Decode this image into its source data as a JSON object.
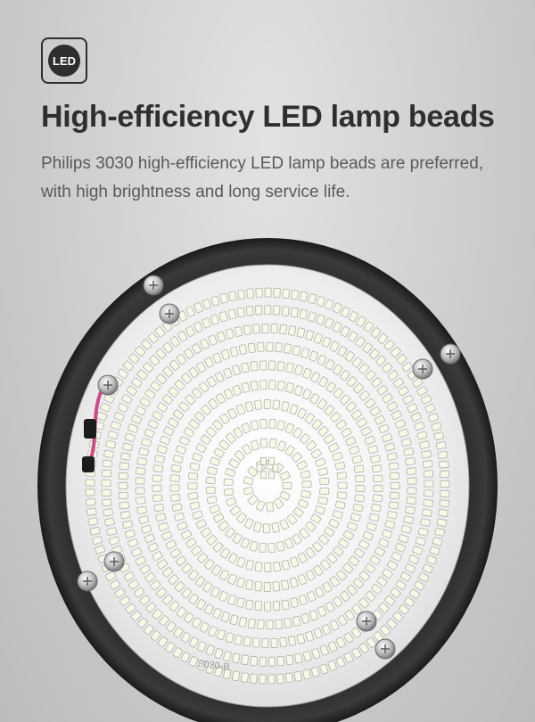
{
  "badge": {
    "text": "LED",
    "icon": "led-badge-icon"
  },
  "heading": {
    "title": "High-efficiency LED lamp beads",
    "description": "Philips 3030 high-efficiency LED lamp beads are preferred, with high brightness and long service life."
  },
  "board": {
    "marking": "3020-B"
  },
  "colors": {
    "title": "#2f2f2f",
    "text": "#5a5a5a",
    "badge": "#2e2e2e",
    "rim": "#2a2a2a",
    "board": "#f2f2f2"
  }
}
